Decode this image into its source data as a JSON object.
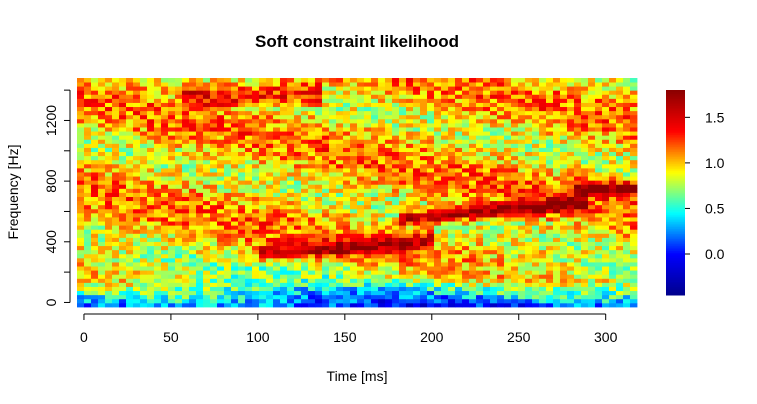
{
  "chart_data": {
    "type": "heatmap",
    "title": "Soft constraint likelihood",
    "xlabel": "Time [ms]",
    "ylabel": "Frequency [Hz]",
    "xlim": [
      -4,
      318
    ],
    "ylim": [
      -30,
      1480
    ],
    "x_ticks": [
      0,
      50,
      100,
      150,
      200,
      250,
      300
    ],
    "y_ticks": [
      0,
      400,
      800,
      1200
    ],
    "y_minor_ticks": [
      0,
      200,
      400,
      600,
      800,
      1000,
      1200,
      1400
    ],
    "x_range": [
      0,
      315
    ],
    "y_range": [
      0,
      1450
    ],
    "grid": false,
    "colorbar": {
      "range": [
        -0.45,
        1.8
      ],
      "ticks": [
        0.0,
        0.5,
        1.0,
        1.5
      ],
      "tick_labels": [
        "0.0",
        "0.5",
        "1.0",
        "1.5"
      ]
    },
    "colormap": [
      "#00008b",
      "#0000ff",
      "#00ffff",
      "#ffff00",
      "#ff0000",
      "#8b0000"
    ],
    "features": [
      {
        "name": "low-frequency low-likelihood band",
        "freq_hz": [
          0,
          120
        ],
        "time_ms": [
          0,
          315
        ],
        "value": 0.1
      },
      {
        "name": "upper high-likelihood band",
        "freq_hz": [
          1300,
          1450
        ],
        "time_ms": [
          60,
          130
        ],
        "value": 1.6
      },
      {
        "name": "formant track 1",
        "freq_hz": [
          330,
          420
        ],
        "time_ms": [
          110,
          190
        ],
        "value": 1.55
      },
      {
        "name": "formant track 2",
        "freq_hz": [
          580,
          680
        ],
        "time_ms": [
          190,
          280
        ],
        "value": 1.75
      },
      {
        "name": "formant track 3",
        "freq_hz": [
          700,
          800
        ],
        "time_ms": [
          285,
          315
        ],
        "value": 1.8
      }
    ]
  }
}
